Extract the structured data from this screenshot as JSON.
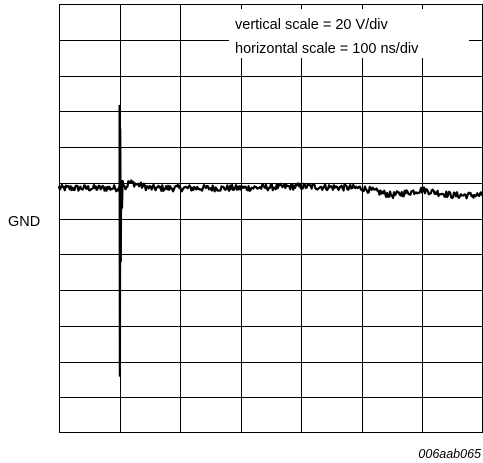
{
  "chart_data": {
    "type": "line",
    "title": "",
    "xlabel": "",
    "ylabel": "",
    "grid": true,
    "divisions": {
      "horizontal": 7,
      "vertical": 12
    },
    "annotations": {
      "vertical_scale": "vertical scale = 20 V/div",
      "horizontal_scale": "horizontal scale = 100 ns/div"
    },
    "ground_label": "GND",
    "ground_level_div": 0.8,
    "figure_ref": "006aab065",
    "series": [
      {
        "x_ns": [
          0,
          100,
          100,
          100.5,
          101,
          102,
          102.5,
          103,
          104,
          105,
          107,
          110,
          115,
          120,
          130,
          150,
          200,
          300,
          400,
          500,
          550,
          600,
          650,
          700
        ],
        "y_div": [
          0.85,
          0.85,
          3.15,
          -4.4,
          2.5,
          -1.2,
          1.0,
          1.05,
          0.3,
          1.05,
          1.0,
          0.85,
          1.0,
          1.0,
          0.95,
          0.85,
          0.85,
          0.85,
          0.9,
          0.85,
          0.65,
          0.8,
          0.65,
          0.65
        ],
        "noise_div": 0.09
      }
    ]
  }
}
